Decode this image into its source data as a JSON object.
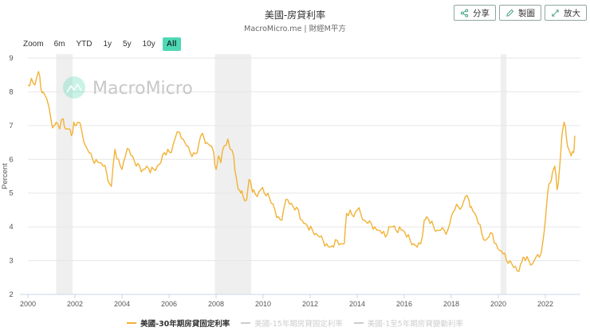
{
  "header": {
    "title": "美國-房貸利率",
    "subtitle": "MacroMicro.me | 財經M平方"
  },
  "actions": [
    {
      "label": "分享",
      "icon": "share-icon"
    },
    {
      "label": "製圖",
      "icon": "pencil-icon"
    },
    {
      "label": "放大",
      "icon": "expand-icon"
    }
  ],
  "range_selector": {
    "label": "Zoom",
    "buttons": [
      "6m",
      "YTD",
      "1y",
      "5y",
      "10y",
      "All"
    ],
    "active": "All"
  },
  "watermark": "MacroMicro",
  "colors": {
    "series": "#f2b234",
    "recession": "#efefef",
    "grid": "#e6e6e6",
    "active_button": "#4fd8b4",
    "legend_inactive": "#cccccc"
  },
  "chart_data": {
    "type": "line",
    "title": "美國-房貸利率",
    "subtitle": "MacroMicro.me | 財經M平方",
    "xlabel": "",
    "ylabel": "Percent",
    "ylim": [
      2,
      9
    ],
    "xlim": [
      2000,
      2023.4
    ],
    "yticks": [
      2,
      3,
      4,
      5,
      6,
      7,
      8,
      9
    ],
    "xticks": [
      2000,
      2002,
      2004,
      2006,
      2008,
      2010,
      2012,
      2014,
      2016,
      2018,
      2020,
      2022
    ],
    "grid": true,
    "legend_position": "bottom",
    "recession_bands": [
      [
        2001.2,
        2001.9
      ],
      [
        2007.95,
        2009.5
      ],
      [
        2020.1,
        2020.35
      ]
    ],
    "series": [
      {
        "name": "美國-30年期房貸固定利率",
        "visible": true,
        "x": [
          2000.0,
          2000.15,
          2000.3,
          2000.45,
          2000.55,
          2000.65,
          2000.8,
          2001.0,
          2001.1,
          2001.2,
          2001.35,
          2001.5,
          2001.6,
          2001.75,
          2001.85,
          2001.95,
          2002.05,
          2002.15,
          2002.3,
          2002.45,
          2002.6,
          2002.75,
          2002.9,
          2003.05,
          2003.2,
          2003.35,
          2003.45,
          2003.55,
          2003.7,
          2003.85,
          2004.0,
          2004.15,
          2004.3,
          2004.45,
          2004.6,
          2004.75,
          2004.9,
          2005.05,
          2005.2,
          2005.35,
          2005.5,
          2005.65,
          2005.8,
          2005.95,
          2006.1,
          2006.25,
          2006.45,
          2006.6,
          2006.75,
          2006.9,
          2007.05,
          2007.2,
          2007.35,
          2007.5,
          2007.6,
          2007.75,
          2007.9,
          2008.0,
          2008.1,
          2008.2,
          2008.35,
          2008.5,
          2008.6,
          2008.75,
          2008.85,
          2008.95,
          2009.05,
          2009.15,
          2009.3,
          2009.4,
          2009.5,
          2009.6,
          2009.75,
          2009.9,
          2010.05,
          2010.2,
          2010.35,
          2010.5,
          2010.65,
          2010.8,
          2010.9,
          2011.05,
          2011.2,
          2011.35,
          2011.5,
          2011.65,
          2011.8,
          2011.95,
          2012.1,
          2012.25,
          2012.4,
          2012.55,
          2012.7,
          2012.85,
          2013.0,
          2013.15,
          2013.3,
          2013.45,
          2013.55,
          2013.7,
          2013.85,
          2014.0,
          2014.15,
          2014.3,
          2014.45,
          2014.6,
          2014.75,
          2014.9,
          2015.05,
          2015.2,
          2015.35,
          2015.5,
          2015.65,
          2015.8,
          2015.95,
          2016.1,
          2016.25,
          2016.4,
          2016.55,
          2016.7,
          2016.85,
          2016.95,
          2017.1,
          2017.25,
          2017.4,
          2017.55,
          2017.7,
          2017.85,
          2018.0,
          2018.15,
          2018.3,
          2018.45,
          2018.6,
          2018.75,
          2018.85,
          2019.0,
          2019.15,
          2019.3,
          2019.45,
          2019.6,
          2019.75,
          2019.9,
          2020.05,
          2020.2,
          2020.35,
          2020.5,
          2020.65,
          2020.8,
          2020.95,
          2021.05,
          2021.15,
          2021.3,
          2021.45,
          2021.6,
          2021.75,
          2021.9,
          2022.0,
          2022.1,
          2022.2,
          2022.3,
          2022.4,
          2022.5,
          2022.6,
          2022.7,
          2022.8,
          2022.9,
          2023.0,
          2023.1,
          2023.2,
          2023.25
        ],
        "values": [
          8.2,
          8.4,
          8.2,
          8.6,
          8.1,
          8.0,
          7.8,
          7.1,
          7.0,
          7.1,
          6.9,
          7.2,
          6.9,
          6.9,
          6.7,
          7.1,
          7.0,
          7.1,
          6.8,
          6.4,
          6.2,
          6.0,
          6.0,
          5.9,
          5.8,
          5.6,
          5.3,
          5.2,
          6.3,
          6.0,
          5.7,
          6.1,
          6.3,
          6.1,
          5.8,
          5.8,
          5.7,
          5.8,
          5.6,
          5.7,
          5.8,
          5.9,
          6.2,
          6.3,
          6.2,
          6.6,
          6.8,
          6.6,
          6.4,
          6.2,
          6.2,
          6.2,
          6.7,
          6.6,
          6.5,
          6.4,
          6.2,
          5.7,
          6.1,
          5.9,
          6.4,
          6.6,
          6.3,
          6.1,
          5.5,
          5.1,
          5.0,
          4.9,
          4.8,
          5.4,
          5.2,
          5.1,
          4.9,
          5.1,
          5.0,
          5.0,
          4.7,
          4.5,
          4.3,
          4.2,
          4.6,
          4.8,
          4.7,
          4.5,
          4.5,
          4.2,
          4.1,
          3.9,
          3.9,
          3.8,
          3.7,
          3.6,
          3.5,
          3.4,
          3.4,
          3.6,
          3.5,
          3.5,
          4.4,
          4.5,
          4.3,
          4.5,
          4.4,
          4.2,
          4.1,
          4.1,
          4.0,
          3.9,
          3.8,
          3.7,
          4.0,
          4.0,
          3.9,
          4.0,
          3.9,
          3.7,
          3.6,
          3.5,
          3.4,
          3.5,
          4.2,
          4.3,
          4.1,
          4.0,
          3.9,
          3.9,
          3.9,
          3.9,
          4.3,
          4.5,
          4.6,
          4.6,
          4.9,
          4.8,
          4.6,
          4.4,
          4.1,
          3.8,
          3.6,
          3.7,
          3.8,
          3.5,
          3.3,
          3.2,
          3.0,
          3.0,
          2.8,
          2.7,
          2.9,
          3.1,
          3.0,
          3.0,
          2.9,
          3.1,
          3.1,
          3.6,
          4.2,
          5.0,
          5.3,
          5.6,
          5.8,
          5.1,
          5.7,
          6.7,
          7.1,
          6.6,
          6.3,
          6.1,
          6.2,
          6.7
        ]
      },
      {
        "name": "美國-15年期房貸固定利率",
        "visible": false,
        "x": [],
        "values": []
      },
      {
        "name": "美國-1至5年期房貸變動利率",
        "visible": false,
        "x": [],
        "values": []
      }
    ]
  },
  "legend": [
    {
      "label": "美國-30年期房貸固定利率",
      "active": true
    },
    {
      "label": "美國-15年期房貸固定利率",
      "active": false
    },
    {
      "label": "美國-1至5年期房貸變動利率",
      "active": false
    }
  ]
}
